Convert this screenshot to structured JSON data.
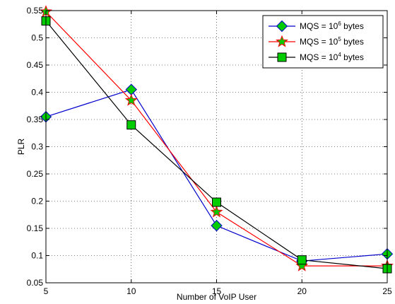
{
  "chart_data": {
    "type": "line",
    "title": "",
    "xlabel": "Number of VoIP User",
    "ylabel": "PLR",
    "x": [
      5,
      10,
      15,
      20,
      25
    ],
    "xlim": [
      5,
      25
    ],
    "ylim": [
      0.05,
      0.55
    ],
    "xticks": [
      "5",
      "10",
      "15",
      "20",
      "25"
    ],
    "yticks": [
      "0.05",
      "0.1",
      "0.15",
      "0.2",
      "0.25",
      "0.3",
      "0.35",
      "0.4",
      "0.45",
      "0.5",
      "0.55"
    ],
    "grid": true,
    "legend_position": "top-right",
    "series": [
      {
        "name": "MQS = 10^6 bytes",
        "legend": {
          "pre": "MQS = 10",
          "sup": "6",
          "post": " bytes"
        },
        "values": [
          0.355,
          0.405,
          0.155,
          0.09,
          0.103
        ],
        "line_color": "#0000cc",
        "marker": "diamond",
        "marker_fill": "#00cc00",
        "marker_edge": "#0000cc"
      },
      {
        "name": "MQS = 10^5 bytes",
        "legend": {
          "pre": "MQS = 10",
          "sup": "5",
          "post": " bytes"
        },
        "values": [
          0.548,
          0.385,
          0.18,
          0.081,
          0.081
        ],
        "line_color": "#ff0000",
        "marker": "star",
        "marker_fill": "#00cc00",
        "marker_edge": "#ff0000"
      },
      {
        "name": "MQS = 10^4 bytes",
        "legend": {
          "pre": "MQS = 10",
          "sup": "4",
          "post": " bytes"
        },
        "values": [
          0.531,
          0.34,
          0.198,
          0.092,
          0.076
        ],
        "line_color": "#000000",
        "marker": "square",
        "marker_fill": "#00cc00",
        "marker_edge": "#000000"
      }
    ]
  }
}
